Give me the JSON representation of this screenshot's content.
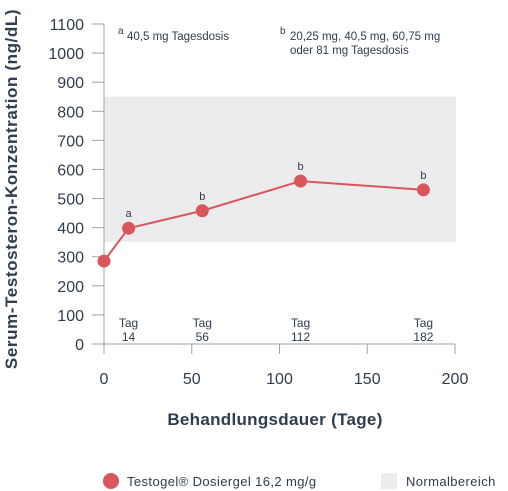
{
  "chart_data": {
    "type": "line",
    "ylabel": "Serum-Testosteron-Konzentration (ng/dL)",
    "xlabel": "Behandlungsdauer (Tage)",
    "xlim": [
      0,
      200
    ],
    "ylim": [
      0,
      1100
    ],
    "x_ticks": [
      "0",
      "50",
      "100",
      "150",
      "200"
    ],
    "y_ticks": [
      "0",
      "100",
      "200",
      "300",
      "400",
      "500",
      "600",
      "700",
      "800",
      "900",
      "1000",
      "1100"
    ],
    "normal_range": [
      350,
      850
    ],
    "normal_range_color": "#ececee",
    "series": [
      {
        "name": "Testogel® Dosiergel 16,2 mg/g",
        "color": "#d9575a",
        "x": [
          0,
          14,
          56,
          112,
          182
        ],
        "y": [
          285,
          398,
          458,
          560,
          530
        ],
        "point_labels": [
          "",
          "a",
          "b",
          "b",
          "b"
        ]
      }
    ],
    "day_labels": [
      {
        "x": 14,
        "line1": "Tag",
        "line2": "14"
      },
      {
        "x": 56,
        "line1": "Tag",
        "line2": "56"
      },
      {
        "x": 112,
        "line1": "Tag",
        "line2": "112"
      },
      {
        "x": 182,
        "line1": "Tag",
        "line2": "182"
      }
    ],
    "annotations": {
      "a": {
        "marker": "a",
        "text": "40,5 mg Tagesdosis"
      },
      "b": {
        "marker": "b",
        "line1": "20,25 mg, 40,5 mg, 60,75 mg",
        "line2": "oder 81 mg Tagesdosis"
      }
    },
    "legend": {
      "series_label": "Testogel® Dosiergel 16,2 mg/g",
      "range_label": "Normalbereich",
      "position": "bottom"
    }
  }
}
